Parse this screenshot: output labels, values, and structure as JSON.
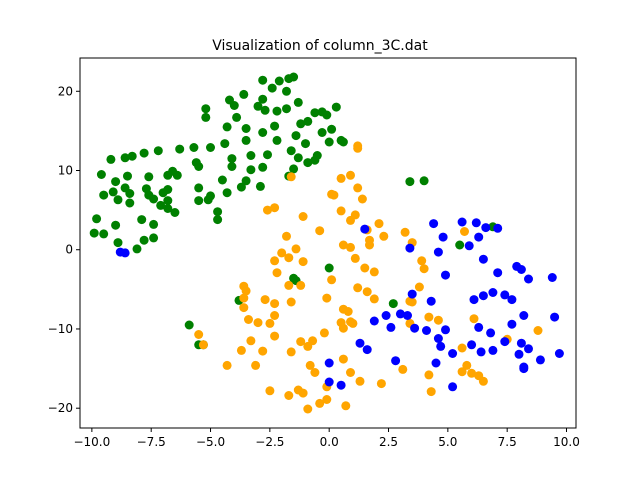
{
  "chart_data": {
    "type": "scatter",
    "title": "Visualization of column_3C.dat",
    "xlabel": "",
    "ylabel": "",
    "xlim": [
      -10.5,
      10.4
    ],
    "ylim": [
      -22.5,
      24.2
    ],
    "xticks": [
      -10.0,
      -7.5,
      -5.0,
      -2.5,
      0.0,
      2.5,
      5.0,
      7.5,
      10.0
    ],
    "xtick_labels": [
      "−10.0",
      "−7.5",
      "−5.0",
      "−2.5",
      "0.0",
      "2.5",
      "5.0",
      "7.5",
      "10.0"
    ],
    "yticks": [
      -20,
      -10,
      0,
      10,
      20
    ],
    "ytick_labels": [
      "−20",
      "−10",
      "0",
      "10",
      "20"
    ],
    "grid": false,
    "legend": false,
    "series": [
      {
        "color": "#008000",
        "points": [
          [
            -2.1,
            21.3
          ],
          [
            -1.7,
            21.6
          ],
          [
            -1.5,
            21.8
          ],
          [
            -2.8,
            21.4
          ],
          [
            -2.4,
            20.4
          ],
          [
            -3.6,
            19.6
          ],
          [
            -1.8,
            20.0
          ],
          [
            -2.8,
            19.0
          ],
          [
            -1.3,
            18.6
          ],
          [
            -1.8,
            17.8
          ],
          [
            -2.2,
            17.5
          ],
          [
            -3.0,
            18.1
          ],
          [
            -2.7,
            17.6
          ],
          [
            -4.2,
            18.9
          ],
          [
            -4.0,
            18.2
          ],
          [
            -5.2,
            17.8
          ],
          [
            -5.2,
            16.7
          ],
          [
            -3.9,
            16.7
          ],
          [
            -3.5,
            15.3
          ],
          [
            -4.3,
            15.5
          ],
          [
            -2.3,
            15.6
          ],
          [
            -2.8,
            14.8
          ],
          [
            -1.2,
            15.9
          ],
          [
            -0.6,
            17.3
          ],
          [
            -0.3,
            17.4
          ],
          [
            0.3,
            18.0
          ],
          [
            -0.1,
            17.0
          ],
          [
            -0.9,
            16.2
          ],
          [
            -0.3,
            14.8
          ],
          [
            0.1,
            15.2
          ],
          [
            -1.4,
            14.4
          ],
          [
            -2.2,
            13.8
          ],
          [
            -3.5,
            13.8
          ],
          [
            -4.4,
            13.4
          ],
          [
            -5.0,
            12.9
          ],
          [
            -5.7,
            12.9
          ],
          [
            -1.0,
            13.4
          ],
          [
            -1.6,
            12.5
          ],
          [
            -2.6,
            12.0
          ],
          [
            -3.3,
            11.9
          ],
          [
            -4.1,
            11.5
          ],
          [
            -5.6,
            11.0
          ],
          [
            -6.3,
            12.7
          ],
          [
            -7.2,
            12.5
          ],
          [
            -7.8,
            12.2
          ],
          [
            -8.3,
            11.8
          ],
          [
            -8.6,
            11.6
          ],
          [
            -9.2,
            11.4
          ],
          [
            -0.5,
            11.9
          ],
          [
            0.5,
            13.8
          ],
          [
            0.0,
            13.6
          ],
          [
            -0.6,
            11.3
          ],
          [
            -1.3,
            11.6
          ],
          [
            -0.9,
            11.0
          ],
          [
            -2.8,
            10.4
          ],
          [
            -3.3,
            10.1
          ],
          [
            -4.1,
            10.5
          ],
          [
            -5.5,
            10.5
          ],
          [
            -6.6,
            9.9
          ],
          [
            -6.4,
            9.4
          ],
          [
            -6.8,
            9.4
          ],
          [
            -7.6,
            9.2
          ],
          [
            -8.5,
            9.3
          ],
          [
            -9.6,
            9.5
          ],
          [
            -9.0,
            8.6
          ],
          [
            -1.5,
            10.2
          ],
          [
            -1.7,
            9.3
          ],
          [
            -4.5,
            8.8
          ],
          [
            -3.5,
            8.7
          ],
          [
            -2.9,
            8.0
          ],
          [
            -3.7,
            7.9
          ],
          [
            -6.8,
            7.6
          ],
          [
            -5.5,
            7.8
          ],
          [
            -8.6,
            7.8
          ],
          [
            -8.4,
            7.1
          ],
          [
            -9.1,
            7.3
          ],
          [
            -9.5,
            6.9
          ],
          [
            -7.7,
            7.7
          ],
          [
            -7.6,
            6.9
          ],
          [
            -7.0,
            7.2
          ],
          [
            -6.8,
            6.2
          ],
          [
            -7.4,
            6.4
          ],
          [
            -8.9,
            6.3
          ],
          [
            -8.4,
            5.9
          ],
          [
            -4.3,
            7.2
          ],
          [
            -5.0,
            6.8
          ],
          [
            -5.5,
            6.2
          ],
          [
            -5.1,
            6.3
          ],
          [
            -7.1,
            5.6
          ],
          [
            -6.8,
            5.2
          ],
          [
            -6.5,
            4.7
          ],
          [
            -4.7,
            4.8
          ],
          [
            -4.7,
            3.8
          ],
          [
            -7.4,
            3.2
          ],
          [
            -7.9,
            3.8
          ],
          [
            -9.8,
            3.9
          ],
          [
            -9.0,
            3.1
          ],
          [
            -7.4,
            1.5
          ],
          [
            -7.8,
            1.2
          ],
          [
            -9.9,
            2.1
          ],
          [
            -9.5,
            2.0
          ],
          [
            -8.9,
            0.9
          ],
          [
            -8.1,
            0.1
          ],
          [
            0.6,
            13.6
          ],
          [
            3.4,
            8.6
          ],
          [
            4.0,
            8.7
          ],
          [
            6.9,
            2.9
          ],
          [
            5.5,
            0.6
          ],
          [
            0.0,
            -2.3
          ],
          [
            -1.5,
            -3.6
          ],
          [
            -1.4,
            -3.9
          ],
          [
            -3.8,
            -6.4
          ],
          [
            2.7,
            -6.8
          ],
          [
            -5.9,
            -9.5
          ],
          [
            -5.5,
            -12.0
          ],
          [
            -5.3,
            -12.0
          ]
        ]
      },
      {
        "color": "#ffa500",
        "points": [
          [
            1.2,
            13.1
          ],
          [
            1.2,
            12.8
          ],
          [
            -1.6,
            9.2
          ],
          [
            0.9,
            9.4
          ],
          [
            0.5,
            9.0
          ],
          [
            0.1,
            7.0
          ],
          [
            1.2,
            7.8
          ],
          [
            1.4,
            6.4
          ],
          [
            0.2,
            6.9
          ],
          [
            -2.6,
            5.0
          ],
          [
            -2.3,
            5.3
          ],
          [
            -1.1,
            4.2
          ],
          [
            0.5,
            4.9
          ],
          [
            1.1,
            4.4
          ],
          [
            0.9,
            3.7
          ],
          [
            2.1,
            3.3
          ],
          [
            -0.4,
            2.4
          ],
          [
            1.6,
            2.5
          ],
          [
            3.2,
            2.2
          ],
          [
            5.7,
            2.3
          ],
          [
            -1.8,
            1.7
          ],
          [
            2.3,
            1.7
          ],
          [
            1.7,
            1.2
          ],
          [
            3.5,
            0.9
          ],
          [
            0.6,
            0.6
          ],
          [
            1.7,
            0.6
          ],
          [
            -1.4,
            0.1
          ],
          [
            0.9,
            0.3
          ],
          [
            -2.0,
            -0.4
          ],
          [
            1.1,
            -1.1
          ],
          [
            -2.3,
            -1.4
          ],
          [
            -1.7,
            -1.0
          ],
          [
            -1.1,
            -1.5
          ],
          [
            3.9,
            -1.4
          ],
          [
            4.0,
            -2.4
          ],
          [
            1.9,
            -2.8
          ],
          [
            -2.2,
            -2.9
          ],
          [
            1.5,
            -2.3
          ],
          [
            0.1,
            -3.8
          ],
          [
            -3.6,
            -4.6
          ],
          [
            -3.5,
            -5.2
          ],
          [
            -1.7,
            -4.5
          ],
          [
            1.2,
            -4.8
          ],
          [
            3.8,
            -4.7
          ],
          [
            -1.2,
            -4.5
          ],
          [
            1.6,
            -5.3
          ],
          [
            1.9,
            -6.2
          ],
          [
            -3.6,
            -6.1
          ],
          [
            -0.1,
            -6.1
          ],
          [
            -2.7,
            -6.3
          ],
          [
            3.4,
            -6.5
          ],
          [
            3.5,
            -6.6
          ],
          [
            -1.6,
            -6.6
          ],
          [
            -3.6,
            -7.3
          ],
          [
            -2.3,
            -6.8
          ],
          [
            0.6,
            -7.5
          ],
          [
            0.8,
            -7.8
          ],
          [
            -2.3,
            -8.3
          ],
          [
            -3.4,
            -8.8
          ],
          [
            -3.0,
            -9.2
          ],
          [
            -2.5,
            -9.3
          ],
          [
            4.2,
            -8.5
          ],
          [
            4.6,
            -8.9
          ],
          [
            0.5,
            -9.2
          ],
          [
            1.0,
            -9.3
          ],
          [
            0.9,
            -9.1
          ],
          [
            0.6,
            -9.9
          ],
          [
            3.4,
            -9.3
          ],
          [
            6.1,
            -8.7
          ],
          [
            -2.3,
            -10.9
          ],
          [
            -1.2,
            -11.6
          ],
          [
            -0.7,
            -11.5
          ],
          [
            -0.2,
            -10.5
          ],
          [
            -3.3,
            -11.5
          ],
          [
            -0.9,
            -12.2
          ],
          [
            5.6,
            -12.4
          ],
          [
            7.5,
            -11.3
          ],
          [
            -3.7,
            -12.7
          ],
          [
            -2.8,
            -12.8
          ],
          [
            -1.6,
            -12.9
          ],
          [
            -5.5,
            -10.7
          ],
          [
            -5.3,
            -12.0
          ],
          [
            -4.3,
            -14.6
          ],
          [
            -3.1,
            -14.6
          ],
          [
            0.6,
            -13.8
          ],
          [
            -0.8,
            -14.6
          ],
          [
            5.8,
            -14.6
          ],
          [
            8.8,
            -10.2
          ],
          [
            6.5,
            -16.6
          ],
          [
            -0.6,
            -15.5
          ],
          [
            0.9,
            -15.5
          ],
          [
            3.1,
            -15.1
          ],
          [
            4.2,
            -15.8
          ],
          [
            2.2,
            -16.9
          ],
          [
            1.3,
            -16.6
          ],
          [
            -2.5,
            -17.8
          ],
          [
            -1.3,
            -17.7
          ],
          [
            -0.1,
            -17.3
          ],
          [
            4.3,
            -17.9
          ],
          [
            6.0,
            -15.6
          ],
          [
            -1.1,
            -18.1
          ],
          [
            -1.7,
            -18.4
          ],
          [
            -0.4,
            -19.4
          ],
          [
            0.7,
            -19.7
          ],
          [
            -0.1,
            -18.9
          ],
          [
            -0.9,
            -20.1
          ],
          [
            5.6,
            -15.4
          ],
          [
            6.3,
            -15.9
          ]
        ]
      },
      {
        "color": "#0000ff",
        "points": [
          [
            1.5,
            2.6
          ],
          [
            4.4,
            3.3
          ],
          [
            5.6,
            3.5
          ],
          [
            6.2,
            3.4
          ],
          [
            6.6,
            2.8
          ],
          [
            7.1,
            2.7
          ],
          [
            4.8,
            1.6
          ],
          [
            6.3,
            1.6
          ],
          [
            5.9,
            0.5
          ],
          [
            3.4,
            0.2
          ],
          [
            4.6,
            -0.3
          ],
          [
            6.5,
            -1.2
          ],
          [
            7.9,
            -2.1
          ],
          [
            8.1,
            -2.5
          ],
          [
            7.1,
            -2.9
          ],
          [
            8.4,
            -3.7
          ],
          [
            9.4,
            -3.5
          ],
          [
            4.9,
            -3.2
          ],
          [
            3.5,
            -5.6
          ],
          [
            4.3,
            -6.5
          ],
          [
            6.1,
            -6.3
          ],
          [
            6.5,
            -5.8
          ],
          [
            6.9,
            -5.4
          ],
          [
            7.4,
            -5.7
          ],
          [
            7.7,
            -6.3
          ],
          [
            8.2,
            -8.3
          ],
          [
            9.5,
            -8.5
          ],
          [
            2.4,
            -8.3
          ],
          [
            3.0,
            -8.1
          ],
          [
            3.3,
            -8.3
          ],
          [
            1.9,
            -9.0
          ],
          [
            2.6,
            -9.8
          ],
          [
            3.6,
            -9.9
          ],
          [
            4.1,
            -10.2
          ],
          [
            4.9,
            -10.1
          ],
          [
            6.3,
            -9.8
          ],
          [
            6.8,
            -10.5
          ],
          [
            7.7,
            -9.4
          ],
          [
            7.4,
            -11.6
          ],
          [
            8.1,
            -11.8
          ],
          [
            8.4,
            -12.5
          ],
          [
            1.3,
            -11.8
          ],
          [
            1.6,
            -12.6
          ],
          [
            4.6,
            -11.2
          ],
          [
            4.7,
            -12.2
          ],
          [
            5.2,
            -13.1
          ],
          [
            6.0,
            -12.0
          ],
          [
            6.4,
            -12.9
          ],
          [
            6.9,
            -12.7
          ],
          [
            8.0,
            -13.2
          ],
          [
            8.9,
            -13.9
          ],
          [
            9.7,
            -13.1
          ],
          [
            2.8,
            -14.0
          ],
          [
            4.5,
            -14.3
          ],
          [
            0.0,
            -14.3
          ],
          [
            0.0,
            -16.7
          ],
          [
            0.5,
            -17.1
          ],
          [
            5.2,
            -17.3
          ],
          [
            8.2,
            -14.8
          ],
          [
            8.2,
            -15.0
          ],
          [
            -8.8,
            -0.3
          ],
          [
            -8.6,
            -0.4
          ]
        ]
      }
    ]
  }
}
